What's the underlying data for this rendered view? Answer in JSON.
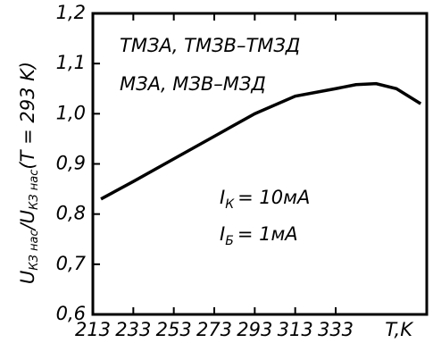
{
  "chart_data": {
    "type": "line",
    "y_label": {
      "main": "U",
      "sub": "КЗ нас",
      "sep": "/U",
      "sub2": "КЗ нас",
      "rest": "(T = 293 K)"
    },
    "x_label": "T,K",
    "annotations": [
      {
        "text": "ТМЗА, ТМЗВ–ТМЗД"
      },
      {
        "text": "МЗА, МЗВ–МЗД"
      },
      {
        "main": "I",
        "sub": "К",
        "rest": "= 10мА"
      },
      {
        "main": "I",
        "sub": "Б",
        "rest": "= 1мА"
      }
    ],
    "x": [
      217,
      233,
      253,
      273,
      293,
      313,
      333,
      343,
      353,
      363,
      375
    ],
    "values": [
      0.83,
      0.865,
      0.91,
      0.955,
      1.0,
      1.035,
      1.05,
      1.058,
      1.06,
      1.05,
      1.02
    ],
    "color": "#000000",
    "xlim": [
      213,
      378
    ],
    "ylim": [
      0.6,
      1.2
    ],
    "xticks": [
      213,
      233,
      253,
      273,
      293,
      313,
      333
    ],
    "yticks": [
      {
        "value": 0.6,
        "label": "0,6"
      },
      {
        "value": 0.7,
        "label": "0,7"
      },
      {
        "value": 0.8,
        "label": "0,8"
      },
      {
        "value": 0.9,
        "label": "0,9"
      },
      {
        "value": 1.0,
        "label": "1,0"
      },
      {
        "value": 1.1,
        "label": "1,1"
      },
      {
        "value": 1.2,
        "label": "1,2"
      }
    ]
  }
}
